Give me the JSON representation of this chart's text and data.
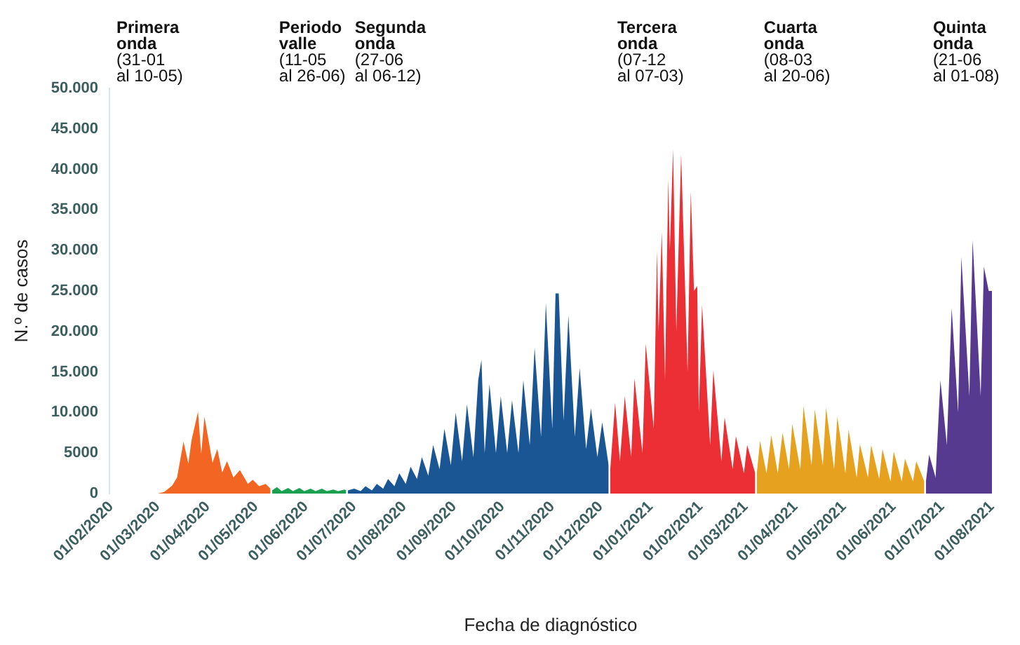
{
  "chart_data": {
    "type": "area",
    "xlabel": "Fecha de diagnóstico",
    "ylabel": "N.º de casos",
    "xlim": [
      "2020-01-31",
      "2021-08-01"
    ],
    "xticks": [
      {
        "value": "2020-02-01",
        "label": "01/02/2020"
      },
      {
        "value": "2020-03-01",
        "label": "01/03/2020"
      },
      {
        "value": "2020-04-01",
        "label": "01/04/2020"
      },
      {
        "value": "2020-05-01",
        "label": "01/05/2020"
      },
      {
        "value": "2020-06-01",
        "label": "01/06/2020"
      },
      {
        "value": "2020-07-01",
        "label": "01/07/2020"
      },
      {
        "value": "2020-08-01",
        "label": "01/08/2020"
      },
      {
        "value": "2020-09-01",
        "label": "01/09/2020"
      },
      {
        "value": "2020-10-01",
        "label": "01/10/2020"
      },
      {
        "value": "2020-11-01",
        "label": "01/11/2020"
      },
      {
        "value": "2020-12-01",
        "label": "01/12/2020"
      },
      {
        "value": "2021-01-01",
        "label": "01/01/2021"
      },
      {
        "value": "2021-02-01",
        "label": "01/02/2021"
      },
      {
        "value": "2021-03-01",
        "label": "01/03/2021"
      },
      {
        "value": "2021-04-01",
        "label": "01/04/2021"
      },
      {
        "value": "2021-05-01",
        "label": "01/05/2021"
      },
      {
        "value": "2021-06-01",
        "label": "01/06/2021"
      },
      {
        "value": "2021-07-01",
        "label": "01/07/2021"
      },
      {
        "value": "2021-08-01",
        "label": "01/08/2021"
      }
    ],
    "ylim": [
      0,
      50000
    ],
    "yticks": [
      0,
      5000,
      {
        "value": 10000,
        "label": "10.000"
      },
      {
        "value": 15000,
        "label": "15.000"
      },
      {
        "value": 20000,
        "label": "20.000"
      },
      {
        "value": 25000,
        "label": "25.000"
      },
      {
        "value": 30000,
        "label": "30.000"
      },
      {
        "value": 35000,
        "label": "35.000"
      },
      {
        "value": 40000,
        "label": "40.000"
      },
      {
        "value": 45000,
        "label": "45.000"
      },
      {
        "value": 50000,
        "label": "50.000"
      }
    ],
    "grid": false,
    "legend": false,
    "marker": "none",
    "annotations": [
      "Primera\nonda\n(31-01\nal 10-05)",
      "Periodo\nvalle\n(11-05\nal 26-06)",
      "Segunda\nonda\n(27-06\nal 06-12)",
      "Tercera\nonda\n(07-12\nal 07-03)",
      "Cuarta\nonda\n(08-03\nal 20-06)",
      "Quinta\nonda\n(21-06\nal 01-08)"
    ],
    "series": [
      {
        "color": "#f26522",
        "x": [
          "2020-01-31",
          "2020-03-01",
          "2020-03-05",
          "2020-03-10",
          "2020-03-13",
          "2020-03-17",
          "2020-03-20",
          "2020-03-22",
          "2020-03-26",
          "2020-03-28",
          "2020-03-30",
          "2020-04-01",
          "2020-04-04",
          "2020-04-07",
          "2020-04-10",
          "2020-04-13",
          "2020-04-17",
          "2020-04-21",
          "2020-04-26",
          "2020-04-29",
          "2020-05-03",
          "2020-05-07",
          "2020-05-10"
        ],
        "values": [
          0,
          0,
          200,
          1000,
          2000,
          6400,
          3700,
          6600,
          10100,
          4900,
          9500,
          7200,
          3800,
          5500,
          2600,
          4000,
          2000,
          2900,
          1200,
          1700,
          900,
          1200,
          600
        ]
      },
      {
        "color": "#1aa150",
        "x": [
          "2020-05-11",
          "2020-05-14",
          "2020-05-17",
          "2020-05-21",
          "2020-05-24",
          "2020-05-28",
          "2020-05-31",
          "2020-06-04",
          "2020-06-07",
          "2020-06-11",
          "2020-06-14",
          "2020-06-18",
          "2020-06-21",
          "2020-06-25",
          "2020-06-26"
        ],
        "values": [
          400,
          800,
          300,
          700,
          300,
          700,
          300,
          600,
          300,
          600,
          300,
          500,
          300,
          500,
          400
        ]
      },
      {
        "color": "#1a5694",
        "x": [
          "2020-06-27",
          "2020-07-01",
          "2020-07-05",
          "2020-07-08",
          "2020-07-12",
          "2020-07-15",
          "2020-07-19",
          "2020-07-22",
          "2020-07-26",
          "2020-07-29",
          "2020-08-02",
          "2020-08-05",
          "2020-08-09",
          "2020-08-12",
          "2020-08-16",
          "2020-08-19",
          "2020-08-23",
          "2020-08-26",
          "2020-08-30",
          "2020-09-02",
          "2020-09-06",
          "2020-09-09",
          "2020-09-13",
          "2020-09-16",
          "2020-09-18",
          "2020-09-20",
          "2020-09-23",
          "2020-09-27",
          "2020-09-30",
          "2020-10-04",
          "2020-10-07",
          "2020-10-11",
          "2020-10-14",
          "2020-10-18",
          "2020-10-21",
          "2020-10-25",
          "2020-10-28",
          "2020-11-01",
          "2020-11-03",
          "2020-11-05",
          "2020-11-08",
          "2020-11-11",
          "2020-11-15",
          "2020-11-18",
          "2020-11-22",
          "2020-11-25",
          "2020-11-29",
          "2020-12-02",
          "2020-12-06"
        ],
        "values": [
          400,
          600,
          300,
          900,
          400,
          1200,
          600,
          1800,
          900,
          2500,
          1200,
          3300,
          1800,
          4500,
          2200,
          6000,
          3000,
          8000,
          3500,
          10000,
          4000,
          11000,
          4500,
          14000,
          16500,
          5000,
          13500,
          5000,
          12000,
          5000,
          11500,
          5000,
          14000,
          6000,
          18000,
          7000,
          23500,
          8000,
          24700,
          24700,
          9000,
          22000,
          7000,
          15500,
          5500,
          10500,
          4500,
          8800,
          3500
        ]
      },
      {
        "color": "#ec2f35",
        "x": [
          "2020-12-07",
          "2020-12-10",
          "2020-12-13",
          "2020-12-16",
          "2020-12-20",
          "2020-12-22",
          "2020-12-27",
          "2020-12-29",
          "2021-01-03",
          "2021-01-05",
          "2021-01-06",
          "2021-01-08",
          "2021-01-10",
          "2021-01-12",
          "2021-01-13",
          "2021-01-15",
          "2021-01-17",
          "2021-01-20",
          "2021-01-24",
          "2021-01-26",
          "2021-01-28",
          "2021-01-30",
          "2021-01-31",
          "2021-02-02",
          "2021-02-07",
          "2021-02-09",
          "2021-02-14",
          "2021-02-16",
          "2021-02-21",
          "2021-02-23",
          "2021-02-28",
          "2021-03-02",
          "2021-03-07"
        ],
        "values": [
          3000,
          11200,
          4000,
          12000,
          4500,
          14200,
          5000,
          18500,
          8000,
          30000,
          20000,
          32300,
          14000,
          38800,
          30000,
          42500,
          20000,
          41900,
          15000,
          37300,
          25000,
          25600,
          10000,
          23300,
          6000,
          15200,
          4000,
          9400,
          3000,
          7100,
          2500,
          6000,
          2500
        ]
      },
      {
        "color": "#e6a21e",
        "x": [
          "2021-03-08",
          "2021-03-10",
          "2021-03-14",
          "2021-03-17",
          "2021-03-21",
          "2021-03-24",
          "2021-03-28",
          "2021-03-30",
          "2021-04-04",
          "2021-04-06",
          "2021-04-11",
          "2021-04-13",
          "2021-04-18",
          "2021-04-20",
          "2021-04-25",
          "2021-04-27",
          "2021-05-02",
          "2021-05-04",
          "2021-05-09",
          "2021-05-11",
          "2021-05-16",
          "2021-05-18",
          "2021-05-23",
          "2021-05-25",
          "2021-05-30",
          "2021-06-01",
          "2021-06-06",
          "2021-06-08",
          "2021-06-13",
          "2021-06-15",
          "2021-06-20"
        ],
        "values": [
          2500,
          6500,
          2500,
          7200,
          2500,
          7500,
          3000,
          8600,
          3000,
          10800,
          3500,
          10400,
          3500,
          10600,
          3000,
          9500,
          2500,
          7900,
          2000,
          6100,
          2000,
          6000,
          1800,
          5500,
          1500,
          5200,
          1500,
          4300,
          1500,
          4000,
          1500
        ]
      },
      {
        "color": "#553a8f",
        "x": [
          "2021-06-21",
          "2021-06-23",
          "2021-06-27",
          "2021-06-30",
          "2021-07-04",
          "2021-07-07",
          "2021-07-11",
          "2021-07-13",
          "2021-07-18",
          "2021-07-20",
          "2021-07-25",
          "2021-07-27",
          "2021-07-30",
          "2021-08-01"
        ],
        "values": [
          1500,
          4800,
          2000,
          14000,
          6000,
          22900,
          10000,
          29200,
          12000,
          31300,
          12000,
          28000,
          25000,
          25000
        ]
      }
    ]
  }
}
